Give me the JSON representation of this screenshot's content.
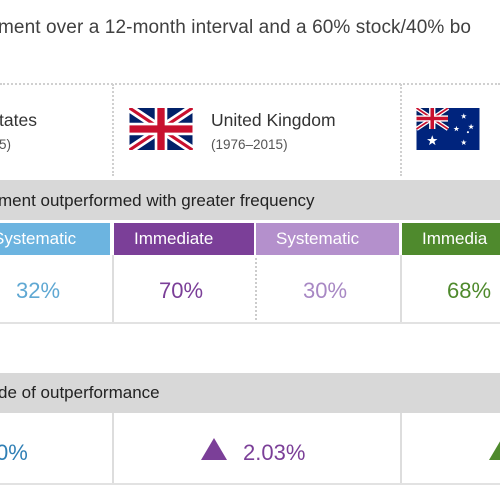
{
  "intro": "ment over a 12-month interval and a 60% stock/40% bo",
  "countries": {
    "us": {
      "name": "tates",
      "years": "5)"
    },
    "uk": {
      "name": "United Kingdom",
      "years": "(1976–2015)"
    },
    "au": {
      "name": "",
      "years": ""
    }
  },
  "sections": {
    "frequency": {
      "title": "ment outperformed with greater frequency"
    },
    "magnitude": {
      "title": "de of outperformance"
    }
  },
  "strategies": [
    {
      "label": "Systematic",
      "color": "#6cb4e0"
    },
    {
      "label": "Immediate",
      "color": "#7b3f98"
    },
    {
      "label": "Systematic",
      "color": "#b490cc"
    },
    {
      "label": "Immedia",
      "color": "#4f8a2d"
    }
  ],
  "frequency_values": [
    {
      "text": "32%",
      "color": "#5fa8d3"
    },
    {
      "text": "70%",
      "color": "#7b3f98"
    },
    {
      "text": "30%",
      "color": "#a888c4"
    },
    {
      "text": "68%",
      "color": "#4f8a2d"
    }
  ],
  "magnitude_values": [
    {
      "text": "0%",
      "color": "#2f7fb5"
    },
    {
      "text": "2.03%",
      "color": "#7b3f98",
      "icon": "triangle-up-icon"
    },
    {
      "text": "",
      "color": "#4f8a2d",
      "icon": "triangle-up-icon"
    }
  ]
}
